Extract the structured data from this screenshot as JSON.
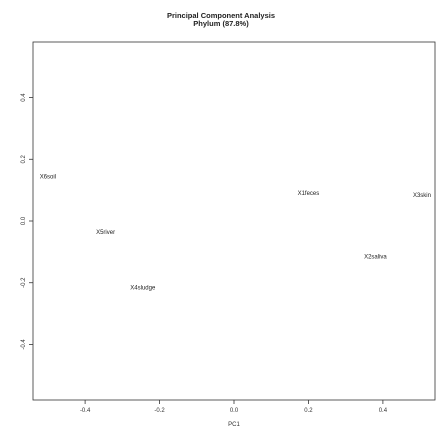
{
  "chart_data": {
    "type": "scatter",
    "title": "Principal Component Analysis",
    "subtitle": "Phylum (87.8%)",
    "xlabel": "PC1",
    "ylabel": "",
    "xlim": [
      -0.54,
      0.54
    ],
    "ylim": [
      -0.58,
      0.58
    ],
    "x_ticks": [
      "-0.4",
      "-0.2",
      "0.0",
      "0.2",
      "0.4"
    ],
    "x_tick_values": [
      -0.4,
      -0.2,
      0.0,
      0.2,
      0.4
    ],
    "y_ticks": [
      "-0.4",
      "-0.2",
      "0.0",
      "0.2",
      "0.4"
    ],
    "y_tick_values": [
      -0.4,
      -0.2,
      0.0,
      0.2,
      0.4
    ],
    "grid": false,
    "points": [
      {
        "label": "X6soil",
        "x": -0.5,
        "y": 0.145
      },
      {
        "label": "X5river",
        "x": -0.345,
        "y": -0.035
      },
      {
        "label": "X4sludge",
        "x": -0.245,
        "y": -0.215
      },
      {
        "label": "X1feces",
        "x": 0.2,
        "y": 0.09
      },
      {
        "label": "X2saliva",
        "x": 0.38,
        "y": -0.115
      },
      {
        "label": "X3skin",
        "x": 0.505,
        "y": 0.085
      }
    ]
  }
}
